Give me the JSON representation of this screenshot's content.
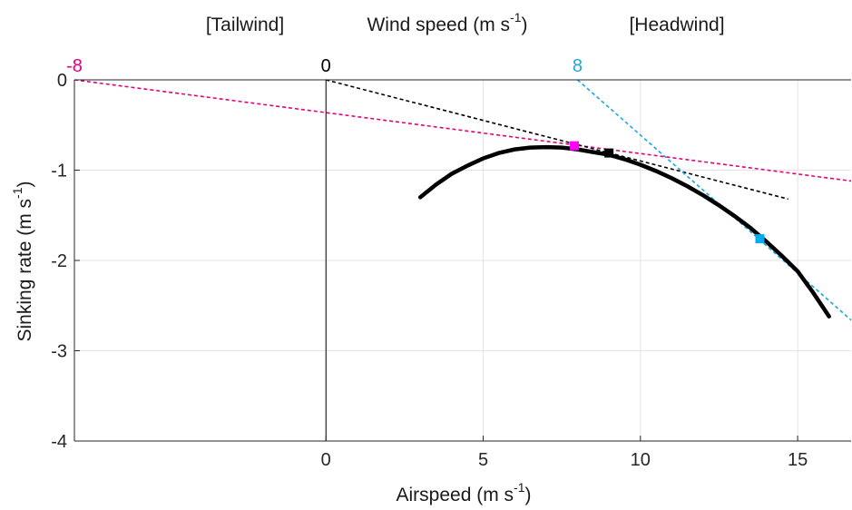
{
  "chart_data": {
    "type": "line",
    "xlabel": {
      "text": "Airspeed (m s",
      "sup": "-1",
      "close": ")"
    },
    "ylabel": {
      "text": "Sinking rate (m s",
      "sup": "-1",
      "close": ")"
    },
    "top_axis": {
      "left_label": "[Tailwind]",
      "center_label": {
        "text": "Wind speed (m s",
        "sup": "-1",
        "close": ")"
      },
      "right_label": "[Headwind]",
      "ticks": [
        {
          "label": "-8",
          "value": -8,
          "color": "#e6007e"
        },
        {
          "label": "0",
          "value": 0,
          "color": "#000000"
        },
        {
          "label": "8",
          "value": 8,
          "color": "#1aa8e0"
        }
      ]
    },
    "xlim": [
      -8,
      16.7
    ],
    "ylim": [
      -4,
      0
    ],
    "xticks": [
      0,
      5,
      10,
      15
    ],
    "xtick_labels": [
      "0",
      "5",
      "10",
      "15"
    ],
    "yticks": [
      0,
      -1,
      -2,
      -3,
      -4
    ],
    "ytick_labels": [
      "0",
      "-1",
      "-2",
      "-3",
      "-4"
    ],
    "grid": true,
    "polar_curve": {
      "name": "",
      "color": "#000000",
      "x": [
        3.0,
        3.5,
        4.0,
        4.5,
        5.0,
        5.5,
        6.0,
        6.5,
        7.0,
        7.5,
        8.0,
        8.5,
        9.0,
        9.5,
        10.0,
        10.5,
        11.0,
        11.5,
        12.0,
        12.5,
        13.0,
        13.5,
        14.0,
        14.5,
        15.0,
        15.5,
        16.0
      ],
      "y": [
        -1.3,
        -1.16,
        -1.04,
        -0.95,
        -0.87,
        -0.81,
        -0.77,
        -0.75,
        -0.745,
        -0.75,
        -0.77,
        -0.8,
        -0.83,
        -0.88,
        -0.94,
        -1.01,
        -1.09,
        -1.18,
        -1.28,
        -1.39,
        -1.51,
        -1.64,
        -1.79,
        -1.95,
        -2.12,
        -2.36,
        -2.62
      ]
    },
    "tangent_lines": [
      {
        "color": "#e6007e",
        "x": [
          -8,
          16.7
        ],
        "y": [
          0,
          -1.12
        ]
      },
      {
        "color": "#000000",
        "x": [
          0,
          14.7
        ],
        "y": [
          0,
          -1.32
        ]
      },
      {
        "color": "#1aa8e0",
        "x": [
          8,
          16.7
        ],
        "y": [
          0,
          -2.66
        ]
      }
    ],
    "markers": [
      {
        "color": "#ff00ff",
        "x": 7.9,
        "y": -0.73
      },
      {
        "color": "#000000",
        "x": 9.0,
        "y": -0.81
      },
      {
        "color": "#00aeef",
        "x": 13.8,
        "y": -1.76
      }
    ]
  }
}
